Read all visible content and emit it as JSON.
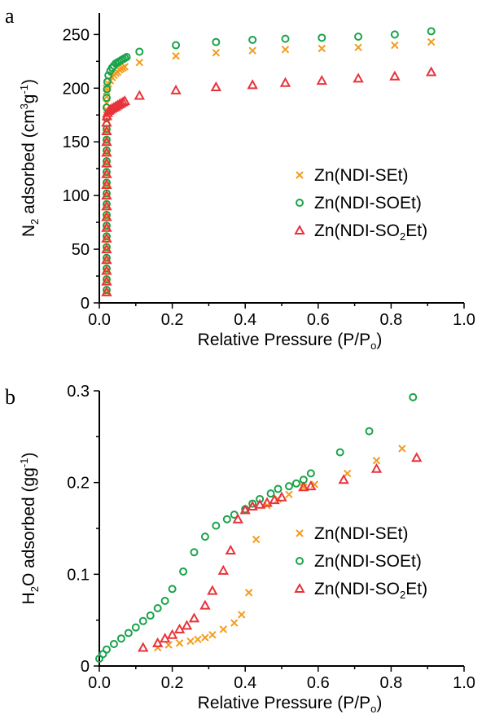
{
  "colors": {
    "orange": "#f39c1e",
    "green": "#1aa34a",
    "red": "#e8333a"
  },
  "chart_data": [
    {
      "panel": "a",
      "type": "scatter",
      "xlabel_parts": [
        "Relative Pressure (P/P",
        "o",
        ")"
      ],
      "ylabel_parts": [
        "N",
        "2",
        " adsorbed (cm",
        "3",
        "g",
        "-1",
        ")"
      ],
      "xlim": [
        0,
        1.0
      ],
      "ylim": [
        0,
        270
      ],
      "xticks": [
        "0.0",
        "0.2",
        "0.4",
        "0.6",
        "0.8",
        "1.0"
      ],
      "xtick_values": [
        0,
        0.2,
        0.4,
        0.6,
        0.8,
        1.0
      ],
      "yticks": [
        "0",
        "50",
        "100",
        "150",
        "200",
        "250"
      ],
      "ytick_values": [
        0,
        50,
        100,
        150,
        200,
        250
      ],
      "legend_position": "center-right",
      "series": [
        {
          "name_parts": [
            "Zn(NDI-SEt)"
          ],
          "marker": "cross",
          "color": "#f39c1e",
          "x": [
            0.02,
            0.02,
            0.02,
            0.02,
            0.02,
            0.02,
            0.02,
            0.02,
            0.02,
            0.02,
            0.02,
            0.02,
            0.02,
            0.02,
            0.02,
            0.02,
            0.02,
            0.02,
            0.02,
            0.02,
            0.02,
            0.02,
            0.025,
            0.03,
            0.035,
            0.04,
            0.045,
            0.05,
            0.055,
            0.06,
            0.065,
            0.07,
            0.11,
            0.21,
            0.32,
            0.42,
            0.51,
            0.61,
            0.71,
            0.81,
            0.91
          ],
          "y": [
            10,
            20,
            30,
            40,
            50,
            60,
            70,
            80,
            90,
            100,
            110,
            120,
            130,
            140,
            150,
            160,
            170,
            180,
            186,
            192,
            197,
            200,
            204,
            207,
            210,
            212,
            214,
            215,
            217,
            218,
            219,
            220,
            224,
            230,
            233,
            235,
            236,
            237,
            238,
            240,
            243
          ]
        },
        {
          "name_parts": [
            "Zn(NDI-SOEt)"
          ],
          "marker": "circle",
          "color": "#1aa34a",
          "x": [
            0.02,
            0.02,
            0.02,
            0.02,
            0.02,
            0.02,
            0.02,
            0.02,
            0.02,
            0.02,
            0.02,
            0.02,
            0.02,
            0.02,
            0.02,
            0.02,
            0.02,
            0.02,
            0.02,
            0.021,
            0.022,
            0.025,
            0.03,
            0.035,
            0.04,
            0.045,
            0.05,
            0.055,
            0.06,
            0.065,
            0.07,
            0.075,
            0.11,
            0.21,
            0.32,
            0.42,
            0.51,
            0.61,
            0.71,
            0.81,
            0.91
          ],
          "y": [
            12,
            22,
            32,
            42,
            52,
            62,
            72,
            82,
            92,
            102,
            112,
            122,
            132,
            142,
            152,
            162,
            172,
            182,
            191,
            199,
            206,
            212,
            216,
            219,
            221,
            223,
            224,
            225,
            226,
            227,
            228,
            229,
            234,
            240,
            243,
            245,
            246,
            247,
            248,
            250,
            253
          ]
        },
        {
          "name_parts": [
            "Zn(NDI-SO",
            "2",
            "Et)"
          ],
          "marker": "triangle",
          "color": "#e8333a",
          "x": [
            0.02,
            0.02,
            0.02,
            0.02,
            0.02,
            0.02,
            0.02,
            0.02,
            0.02,
            0.02,
            0.02,
            0.02,
            0.02,
            0.02,
            0.02,
            0.02,
            0.02,
            0.021,
            0.023,
            0.026,
            0.03,
            0.035,
            0.04,
            0.045,
            0.05,
            0.055,
            0.06,
            0.065,
            0.07,
            0.11,
            0.21,
            0.32,
            0.42,
            0.51,
            0.61,
            0.71,
            0.81,
            0.91
          ],
          "y": [
            10,
            20,
            30,
            40,
            50,
            60,
            70,
            80,
            90,
            100,
            110,
            120,
            130,
            140,
            150,
            160,
            168,
            174,
            177,
            179,
            180,
            181,
            182,
            183,
            184,
            185,
            186,
            187,
            188,
            193,
            198,
            201,
            203,
            205,
            207,
            209,
            211,
            215
          ]
        }
      ]
    },
    {
      "panel": "b",
      "type": "scatter",
      "xlabel_parts": [
        "Relative Pressure (P/P",
        "o",
        ")"
      ],
      "ylabel_parts": [
        "H",
        "2",
        "O adsorbed (gg",
        "-1",
        ")"
      ],
      "xlim": [
        0,
        1.0
      ],
      "ylim": [
        0,
        0.3
      ],
      "xticks": [
        "0.0",
        "0.2",
        "0.4",
        "0.6",
        "0.8",
        "1.0"
      ],
      "xtick_values": [
        0,
        0.2,
        0.4,
        0.6,
        0.8,
        1.0
      ],
      "yticks": [
        "0",
        "0.1",
        "0.2",
        "0.3"
      ],
      "ytick_values": [
        0,
        0.1,
        0.2,
        0.3
      ],
      "legend_position": "lower-right",
      "series": [
        {
          "name_parts": [
            "Zn(NDI-SEt)"
          ],
          "marker": "cross",
          "color": "#f39c1e",
          "x": [
            0.16,
            0.19,
            0.22,
            0.25,
            0.27,
            0.29,
            0.31,
            0.34,
            0.37,
            0.39,
            0.41,
            0.43,
            0.46,
            0.49,
            0.52,
            0.56,
            0.59,
            0.68,
            0.76,
            0.83
          ],
          "y": [
            0.02,
            0.023,
            0.025,
            0.027,
            0.029,
            0.031,
            0.034,
            0.04,
            0.047,
            0.056,
            0.08,
            0.138,
            0.175,
            0.182,
            0.187,
            0.195,
            0.198,
            0.21,
            0.224,
            0.237
          ]
        },
        {
          "name_parts": [
            "Zn(NDI-SOEt)"
          ],
          "marker": "circle",
          "color": "#1aa34a",
          "x": [
            0.0,
            0.01,
            0.02,
            0.04,
            0.06,
            0.08,
            0.1,
            0.12,
            0.14,
            0.16,
            0.18,
            0.2,
            0.23,
            0.26,
            0.29,
            0.32,
            0.35,
            0.37,
            0.4,
            0.42,
            0.44,
            0.47,
            0.49,
            0.52,
            0.54,
            0.56,
            0.58,
            0.66,
            0.74,
            0.86
          ],
          "y": [
            0.008,
            0.013,
            0.018,
            0.024,
            0.03,
            0.036,
            0.042,
            0.049,
            0.055,
            0.063,
            0.071,
            0.084,
            0.103,
            0.124,
            0.141,
            0.153,
            0.16,
            0.165,
            0.171,
            0.177,
            0.182,
            0.188,
            0.193,
            0.196,
            0.199,
            0.203,
            0.21,
            0.233,
            0.256,
            0.293
          ]
        },
        {
          "name_parts": [
            "Zn(NDI-SO",
            "2",
            "Et)"
          ],
          "marker": "triangle",
          "color": "#e8333a",
          "x": [
            0.12,
            0.16,
            0.18,
            0.2,
            0.22,
            0.24,
            0.26,
            0.29,
            0.31,
            0.34,
            0.36,
            0.38,
            0.4,
            0.42,
            0.44,
            0.46,
            0.48,
            0.5,
            0.56,
            0.58,
            0.67,
            0.76,
            0.87
          ],
          "y": [
            0.02,
            0.025,
            0.03,
            0.034,
            0.04,
            0.044,
            0.052,
            0.066,
            0.082,
            0.104,
            0.126,
            0.16,
            0.17,
            0.174,
            0.176,
            0.178,
            0.181,
            0.184,
            0.195,
            0.196,
            0.203,
            0.215,
            0.227
          ]
        }
      ]
    }
  ]
}
